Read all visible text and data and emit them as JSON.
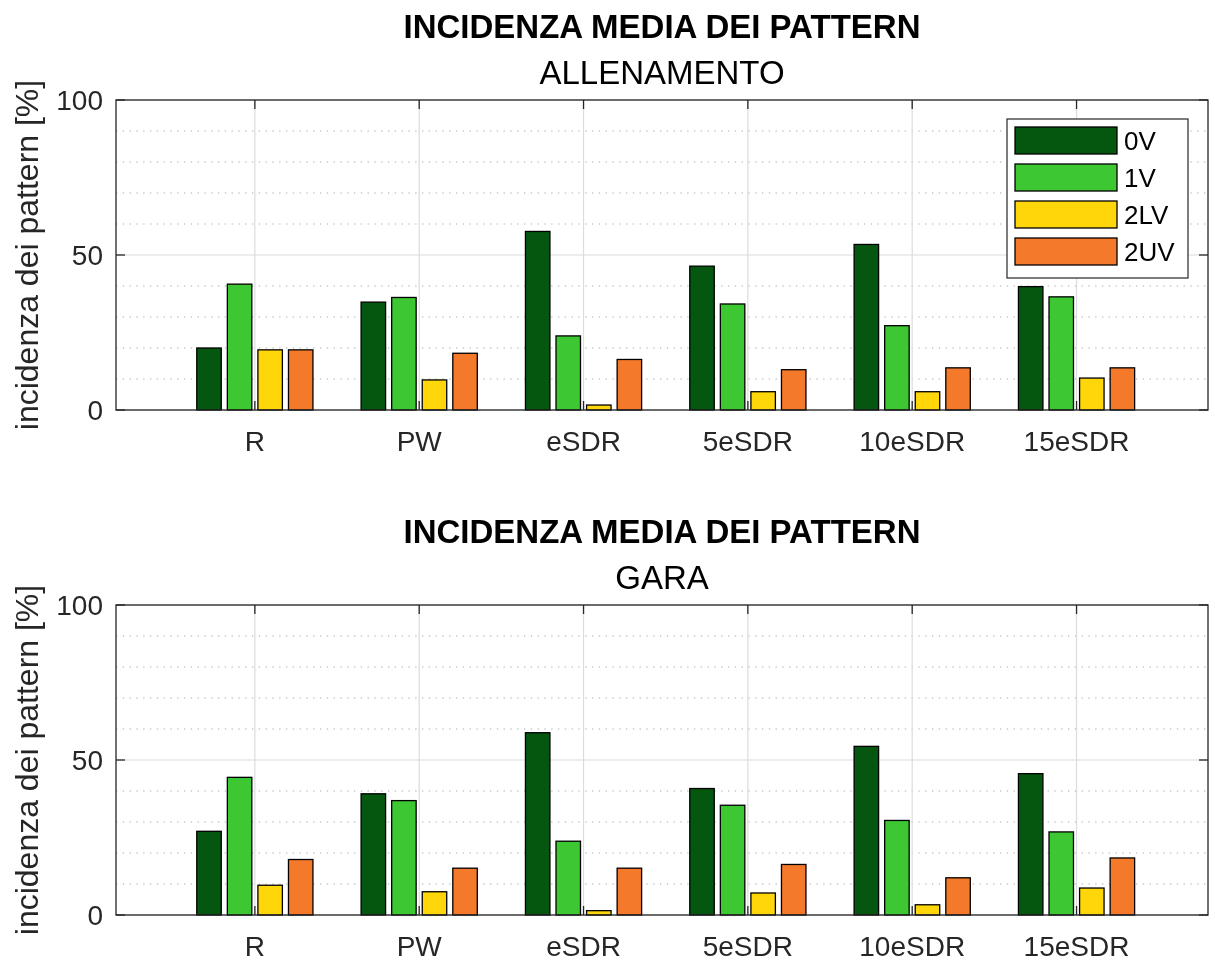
{
  "chart_data": [
    {
      "type": "bar",
      "title": "INCIDENZA MEDIA DEI PATTERN",
      "subtitle": "ALLENAMENTO",
      "ylabel": "incidenza dei pattern [%]",
      "categories": [
        "R",
        "PW",
        "eSDR",
        "5eSDR",
        "10eSDR",
        "15eSDR"
      ],
      "series": [
        {
          "name": "0V",
          "color": "#05570f",
          "values": [
            20.0,
            34.8,
            57.6,
            46.4,
            53.4,
            39.8
          ]
        },
        {
          "name": "1V",
          "color": "#3dc733",
          "values": [
            40.6,
            36.3,
            23.9,
            34.2,
            27.2,
            36.5
          ]
        },
        {
          "name": "2LV",
          "color": "#ffd60a",
          "values": [
            19.4,
            9.7,
            1.6,
            5.9,
            5.9,
            10.3
          ]
        },
        {
          "name": "2UV",
          "color": "#f4792b",
          "values": [
            19.4,
            18.3,
            16.3,
            13.0,
            13.6,
            13.6
          ]
        }
      ],
      "ylim": [
        0,
        100
      ],
      "yticks": [
        0,
        {
          "value": 10,
          "label": null
        },
        {
          "value": 20,
          "label": null
        },
        {
          "value": 30,
          "label": null
        },
        {
          "value": 40,
          "label": null
        },
        50,
        {
          "value": 60,
          "label": null
        },
        {
          "value": 70,
          "label": null
        },
        {
          "value": 80,
          "label": null
        },
        {
          "value": 90,
          "label": null
        },
        100
      ],
      "grid": true,
      "legend": "top right"
    },
    {
      "type": "bar",
      "title": "INCIDENZA MEDIA DEI PATTERN",
      "subtitle": "GARA",
      "ylabel": "incidenza dei pattern [%]",
      "categories": [
        "R",
        "PW",
        "eSDR",
        "5eSDR",
        "10eSDR",
        "15eSDR"
      ],
      "series": [
        {
          "color": "#05570f",
          "values": [
            27.0,
            39.1,
            58.8,
            40.8,
            54.4,
            45.6
          ]
        },
        {
          "color": "#3dc733",
          "values": [
            44.4,
            36.9,
            23.8,
            35.4,
            30.5,
            26.8
          ]
        },
        {
          "color": "#ffd60a",
          "values": [
            9.6,
            7.5,
            1.4,
            7.1,
            3.3,
            8.7
          ]
        },
        {
          "color": "#f4792b",
          "values": [
            17.9,
            15.1,
            15.1,
            16.3,
            12.0,
            18.4
          ]
        }
      ],
      "ylim": [
        0,
        100
      ],
      "yticks": [
        0,
        {
          "value": 10,
          "label": null
        },
        {
          "value": 20,
          "label": null
        },
        {
          "value": 30,
          "label": null
        },
        {
          "value": 40,
          "label": null
        },
        50,
        {
          "value": 60,
          "label": null
        },
        {
          "value": 70,
          "label": null
        },
        {
          "value": 80,
          "label": null
        },
        {
          "value": 90,
          "label": null
        },
        100
      ],
      "grid": true,
      "legend": false
    }
  ]
}
